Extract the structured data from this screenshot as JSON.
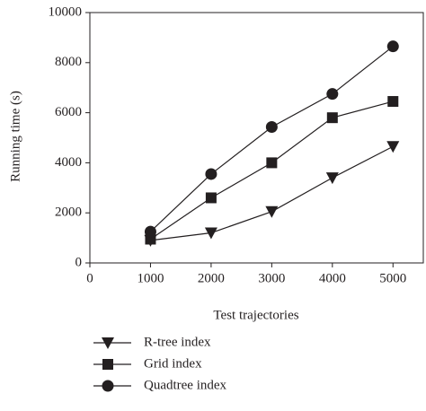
{
  "chart_data": {
    "type": "line",
    "x_label": "Test trajectories",
    "y_label": "Running time (s)",
    "x": [
      1000,
      2000,
      3000,
      4000,
      5000
    ],
    "series": [
      {
        "name": "R-tree index",
        "color": "#231f20",
        "marker": "triangle-down",
        "values": [
          900,
          1200,
          2050,
          3400,
          4650
        ]
      },
      {
        "name": "Grid index",
        "color": "#231f20",
        "marker": "square",
        "values": [
          950,
          2600,
          4000,
          5800,
          6450
        ]
      },
      {
        "name": "Quadtree index",
        "color": "#231f20",
        "marker": "circle",
        "values": [
          1250,
          3550,
          5430,
          6750,
          8650
        ]
      }
    ],
    "xlim": [
      0,
      5500
    ],
    "xticks": [
      0,
      1000,
      2000,
      3000,
      4000,
      5000
    ],
    "ylim": [
      0,
      10000
    ],
    "yticks": [
      0,
      2000,
      4000,
      6000,
      8000,
      10000
    ],
    "legend": "below"
  }
}
